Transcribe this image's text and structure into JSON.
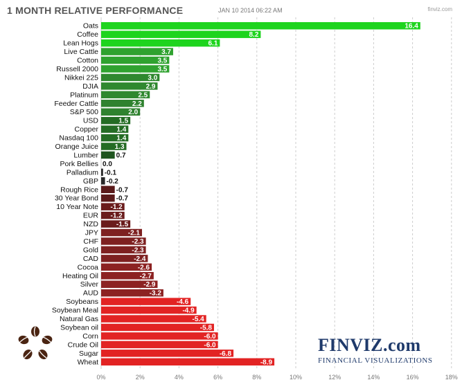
{
  "header": {
    "title": "1 MONTH RELATIVE PERFORMANCE",
    "timestamp": "JAN 10 2014 06:22 AM",
    "credit": "finviz.com"
  },
  "branding": {
    "logo_text": "FINVIZ.com",
    "logo_subtitle": "FINANCIAL VISUALIZATIONS"
  },
  "colors": {
    "positive_bright": "#17c917",
    "positive_dark": "#1f6b1f",
    "negative_dark": "#6b1a1a",
    "negative_bright": "#d81c1c",
    "grid": "#cccccc",
    "brand": "#1f3a6b"
  },
  "chart_data": {
    "type": "bar",
    "orientation": "horizontal",
    "title": "1 MONTH RELATIVE PERFORMANCE",
    "categories": [
      "Oats",
      "Coffee",
      "Lean Hogs",
      "Live Cattle",
      "Cotton",
      "Russell 2000",
      "Nikkei 225",
      "DJIA",
      "Platinum",
      "Feeder Cattle",
      "S&P 500",
      "USD",
      "Copper",
      "Nasdaq 100",
      "Orange Juice",
      "Lumber",
      "Pork Bellies",
      "Palladium",
      "GBP",
      "Rough Rice",
      "30 Year Bond",
      "10 Year Note",
      "EUR",
      "NZD",
      "JPY",
      "CHF",
      "Gold",
      "CAD",
      "Cocoa",
      "Heating Oil",
      "Silver",
      "AUD",
      "Soybeans",
      "Soybean Meal",
      "Natural Gas",
      "Soybean oil",
      "Corn",
      "Crude Oil",
      "Sugar",
      "Wheat"
    ],
    "values": [
      16.4,
      8.2,
      6.1,
      3.7,
      3.5,
      3.5,
      3.0,
      2.9,
      2.5,
      2.2,
      2.0,
      1.5,
      1.4,
      1.4,
      1.3,
      0.7,
      0.0,
      -0.1,
      -0.2,
      -0.7,
      -0.7,
      -1.2,
      -1.2,
      -1.5,
      -2.1,
      -2.3,
      -2.3,
      -2.4,
      -2.6,
      -2.7,
      -2.9,
      -3.2,
      -4.6,
      -4.9,
      -5.4,
      -5.8,
      -6.0,
      -6.0,
      -6.8,
      -8.9
    ],
    "value_labels": [
      "16.4",
      "8.2",
      "6.1",
      "3.7",
      "3.5",
      "3.5",
      "3.0",
      "2.9",
      "2.5",
      "2.2",
      "2.0",
      "1.5",
      "1.4",
      "1.4",
      "1.3",
      "0.7",
      "0.0",
      "-0.1",
      "-0.2",
      "-0.7",
      "-0.7",
      "-1.2",
      "-1.2",
      "-1.5",
      "-2.1",
      "-2.3",
      "-2.3",
      "-2.4",
      "-2.6",
      "-2.7",
      "-2.9",
      "-3.2",
      "-4.6",
      "-4.9",
      "-5.4",
      "-5.8",
      "-6.0",
      "-6.0",
      "-6.8",
      "-8.9"
    ],
    "bar_colors": [
      "#1ed41e",
      "#1ed41e",
      "#1ed41e",
      "#2fa22f",
      "#2fa22f",
      "#2fa22f",
      "#2f882f",
      "#2f882f",
      "#2f882f",
      "#2f822f",
      "#2f822f",
      "#246c24",
      "#246c24",
      "#246c24",
      "#246c24",
      "#1f551f",
      "#333333",
      "#2a2a2a",
      "#2a2a2a",
      "#5a1a1a",
      "#5a1a1a",
      "#6a1c1c",
      "#6a1c1c",
      "#6a1c1c",
      "#7e2121",
      "#7e2121",
      "#7e2121",
      "#7e2121",
      "#8c2222",
      "#8c2222",
      "#8c2222",
      "#8c2222",
      "#e22323",
      "#e22323",
      "#e22323",
      "#e22323",
      "#e22323",
      "#e22323",
      "#e22323",
      "#e22323"
    ],
    "x_ticks": [
      "0%",
      "2%",
      "4%",
      "6%",
      "8%",
      "10%",
      "12%",
      "14%",
      "16%",
      "18%"
    ],
    "xlim": [
      0,
      18
    ],
    "grid": true
  }
}
